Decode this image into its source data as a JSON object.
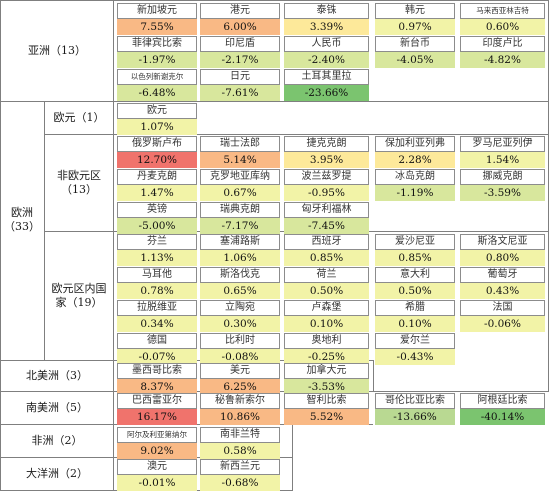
{
  "chart_data": {
    "type": "table",
    "colors": {
      "strong_positive": "#f0736c",
      "positive": "#f9b985",
      "mild_positive": "#fde99a",
      "neutral": "#f2f3a7",
      "mild_negative": "#d8e79d",
      "negative": "#b9d992",
      "strong_negative": "#7bc46f"
    },
    "groups": [
      {
        "id": "asia",
        "label": "亚洲（13）",
        "rows": [
          [
            {
              "name": "新加坡元",
              "value": "7.55%",
              "change": 7.55
            },
            {
              "name": "港元",
              "value": "6.00%",
              "change": 6.0
            },
            {
              "name": "泰铢",
              "value": "3.39%",
              "change": 3.39
            },
            {
              "name": "韩元",
              "value": "0.97%",
              "change": 0.97
            },
            {
              "name": "马来西亚林吉特",
              "value": "0.60%",
              "change": 0.6
            }
          ],
          [
            {
              "name": "菲律宾比索",
              "value": "-1.97%",
              "change": -1.97
            },
            {
              "name": "印尼盾",
              "value": "-2.17%",
              "change": -2.17
            },
            {
              "name": "人民币",
              "value": "-2.40%",
              "change": -2.4
            },
            {
              "name": "新台币",
              "value": "-4.05%",
              "change": -4.05
            },
            {
              "name": "印度卢比",
              "value": "-4.82%",
              "change": -4.82
            }
          ],
          [
            {
              "name": "以色列新谢克尔",
              "value": "-6.48%",
              "change": -6.48
            },
            {
              "name": "日元",
              "value": "-7.61%",
              "change": -7.61
            },
            {
              "name": "土耳其里拉",
              "value": "-23.66%",
              "change": -23.66
            }
          ]
        ]
      },
      {
        "id": "europe",
        "label": "欧洲（33）",
        "subgroups": [
          {
            "id": "euro",
            "label": "欧元（1）",
            "rows": [
              [
                {
                  "name": "欧元",
                  "value": "1.07%",
                  "change": 1.07
                }
              ]
            ]
          },
          {
            "id": "non_euro",
            "label": "非欧元区（13）",
            "rows": [
              [
                {
                  "name": "俄罗斯卢布",
                  "value": "12.70%",
                  "change": 12.7
                },
                {
                  "name": "瑞士法郎",
                  "value": "5.14%",
                  "change": 5.14
                },
                {
                  "name": "捷克克朗",
                  "value": "3.95%",
                  "change": 3.95
                },
                {
                  "name": "保加利亚列弗",
                  "value": "2.28%",
                  "change": 2.28
                },
                {
                  "name": "罗马尼亚列伊",
                  "value": "1.54%",
                  "change": 1.54
                }
              ],
              [
                {
                  "name": "丹麦克朗",
                  "value": "1.47%",
                  "change": 1.47
                },
                {
                  "name": "克罗地亚库纳",
                  "value": "0.67%",
                  "change": 0.67
                },
                {
                  "name": "波兰兹罗提",
                  "value": "-0.95%",
                  "change": -0.95
                },
                {
                  "name": "冰岛克朗",
                  "value": "-1.19%",
                  "change": -1.19
                },
                {
                  "name": "挪威克朗",
                  "value": "-3.59%",
                  "change": -3.59
                }
              ],
              [
                {
                  "name": "英镑",
                  "value": "-5.00%",
                  "change": -5.0
                },
                {
                  "name": "瑞典克朗",
                  "value": "-7.17%",
                  "change": -7.17
                },
                {
                  "name": "匈牙利福林",
                  "value": "-7.45%",
                  "change": -7.45
                }
              ]
            ]
          },
          {
            "id": "eurozone",
            "label": "欧元区内国家（19）",
            "rows": [
              [
                {
                  "name": "芬兰",
                  "value": "1.13%",
                  "change": 1.13
                },
                {
                  "name": "塞浦路斯",
                  "value": "1.06%",
                  "change": 1.06
                },
                {
                  "name": "西班牙",
                  "value": "0.85%",
                  "change": 0.85
                },
                {
                  "name": "爱沙尼亚",
                  "value": "0.85%",
                  "change": 0.85
                },
                {
                  "name": "斯洛文尼亚",
                  "value": "0.80%",
                  "change": 0.8
                }
              ],
              [
                {
                  "name": "马耳他",
                  "value": "0.78%",
                  "change": 0.78
                },
                {
                  "name": "斯洛伐克",
                  "value": "0.65%",
                  "change": 0.65
                },
                {
                  "name": "荷兰",
                  "value": "0.50%",
                  "change": 0.5
                },
                {
                  "name": "意大利",
                  "value": "0.50%",
                  "change": 0.5
                },
                {
                  "name": "葡萄牙",
                  "value": "0.43%",
                  "change": 0.43
                }
              ],
              [
                {
                  "name": "拉脱维亚",
                  "value": "0.34%",
                  "change": 0.34
                },
                {
                  "name": "立陶宛",
                  "value": "0.30%",
                  "change": 0.3
                },
                {
                  "name": "卢森堡",
                  "value": "0.10%",
                  "change": 0.1
                },
                {
                  "name": "希腊",
                  "value": "0.10%",
                  "change": 0.1
                },
                {
                  "name": "法国",
                  "value": "-0.06%",
                  "change": -0.06
                }
              ],
              [
                {
                  "name": "德国",
                  "value": "-0.07%",
                  "change": -0.07
                },
                {
                  "name": "比利时",
                  "value": "-0.08%",
                  "change": -0.08
                },
                {
                  "name": "奥地利",
                  "value": "-0.25%",
                  "change": -0.25
                },
                {
                  "name": "爱尔兰",
                  "value": "-0.43%",
                  "change": -0.43
                }
              ]
            ]
          }
        ]
      },
      {
        "id": "north_america",
        "label": "北美洲（3）",
        "rows": [
          [
            {
              "name": "墨西哥比索",
              "value": "8.37%",
              "change": 8.37
            },
            {
              "name": "美元",
              "value": "6.25%",
              "change": 6.25
            },
            {
              "name": "加拿大元",
              "value": "-3.53%",
              "change": -3.53
            }
          ]
        ]
      },
      {
        "id": "south_america",
        "label": "南美洲（5）",
        "rows": [
          [
            {
              "name": "巴西雷亚尔",
              "value": "16.17%",
              "change": 16.17
            },
            {
              "name": "秘鲁新索尔",
              "value": "10.86%",
              "change": 10.86
            },
            {
              "name": "智利比索",
              "value": "5.52%",
              "change": 5.52
            },
            {
              "name": "哥伦比亚比索",
              "value": "-13.66%",
              "change": -13.66
            },
            {
              "name": "阿根廷比索",
              "value": "-40.14%",
              "change": -40.14
            }
          ]
        ]
      },
      {
        "id": "africa",
        "label": "非洲（2）",
        "rows": [
          [
            {
              "name": "阿尔及利亚第纳尔",
              "value": "9.02%",
              "change": 9.02
            },
            {
              "name": "南非兰特",
              "value": "0.58%",
              "change": 0.58
            }
          ]
        ]
      },
      {
        "id": "oceania",
        "label": "大洋洲（2）",
        "rows": [
          [
            {
              "name": "澳元",
              "value": "-0.01%",
              "change": -0.01
            },
            {
              "name": "新西兰元",
              "value": "-0.68%",
              "change": -0.68
            }
          ]
        ]
      }
    ]
  }
}
